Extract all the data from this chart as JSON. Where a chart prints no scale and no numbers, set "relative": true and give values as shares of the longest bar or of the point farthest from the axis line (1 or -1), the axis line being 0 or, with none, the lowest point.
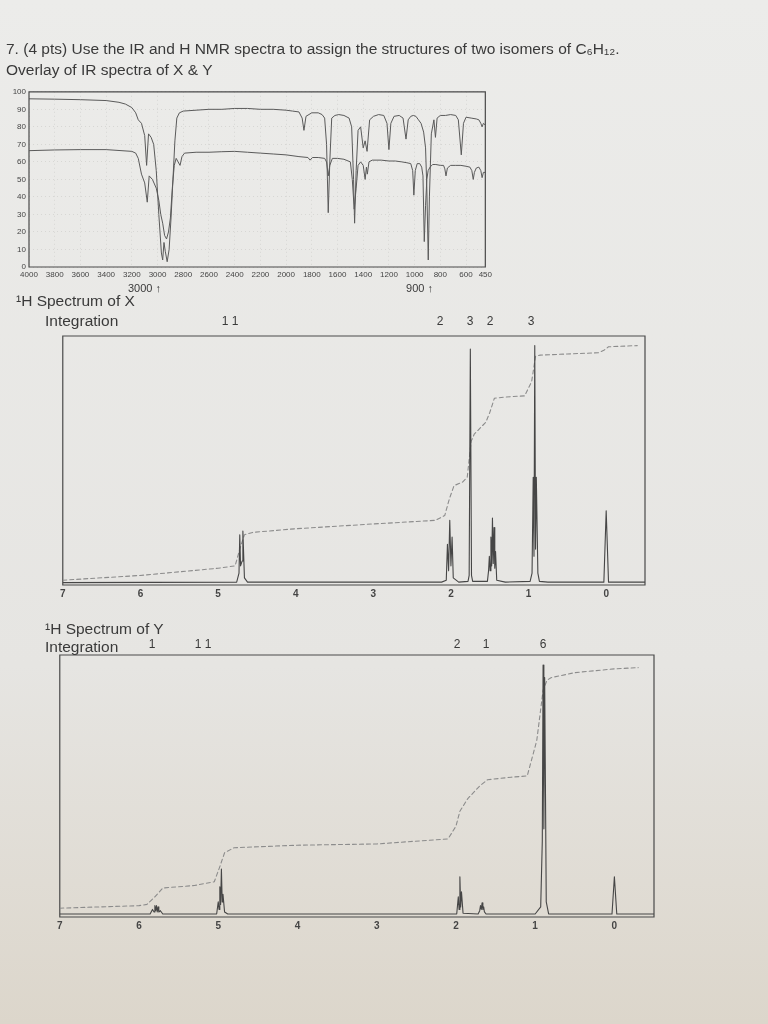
{
  "chart_data": [
    {
      "type": "line",
      "title": "7. (4 pts) Use the IR and H NMR spectra to assign the structures of two isomers of C₆H₁₂.",
      "subtitle": "Overlay of IR spectra of X & Y",
      "xlim": [
        4000,
        450
      ],
      "xticks": [
        4000,
        3800,
        3600,
        3400,
        3200,
        3000,
        2800,
        2600,
        2400,
        2200,
        2000,
        1800,
        1600,
        1400,
        1200,
        1000,
        800,
        600,
        450
      ],
      "ylim": [
        0,
        100
      ],
      "yticks": [
        0,
        10,
        20,
        30,
        40,
        50,
        60,
        70,
        80,
        90,
        100
      ],
      "grid": true,
      "marker": "none",
      "annotations": [
        "3000 ↑",
        "900 ↑"
      ],
      "series": [
        {
          "color": "#5a5a5a",
          "x": [
            4000,
            3800,
            3600,
            3400,
            3300,
            3250,
            3200,
            3170,
            3150,
            3125,
            3100,
            3085,
            3070,
            3050,
            3030,
            3010,
            2990,
            2970,
            2960,
            2950,
            2940,
            2925,
            2910,
            2895,
            2880,
            2865,
            2850,
            2830,
            2800,
            2700,
            2600,
            2500,
            2400,
            2300,
            2200,
            2100,
            2000,
            1950,
            1900,
            1875,
            1861,
            1845,
            1800,
            1750,
            1720,
            1700,
            1685,
            1672,
            1660,
            1645,
            1620,
            1590,
            1550,
            1510,
            1490,
            1475,
            1467,
            1455,
            1440,
            1420,
            1400,
            1385,
            1370,
            1350,
            1320,
            1280,
            1240,
            1215,
            1200,
            1185,
            1160,
            1120,
            1090,
            1067,
            1050,
            1030,
            1010,
            990,
            970,
            950,
            930,
            915,
            905,
            894,
            885,
            870,
            850,
            838,
            825,
            800,
            760,
            720,
            680,
            660,
            637,
            620,
            600,
            560,
            520,
            500,
            485,
            475,
            465,
            450
          ],
          "values": [
            96,
            95.8,
            95.5,
            95,
            94,
            93,
            91,
            88,
            84,
            82,
            75,
            58,
            76,
            74,
            70,
            55,
            30,
            8,
            4,
            14,
            9,
            3,
            10,
            28,
            50,
            72,
            85,
            88,
            89,
            89.5,
            90,
            90,
            90.5,
            90.5,
            90,
            90,
            89.5,
            89,
            88.5,
            85,
            78,
            86,
            88,
            88,
            87,
            85,
            70,
            31,
            60,
            85,
            86.5,
            87,
            86.5,
            85,
            80,
            50,
            25,
            55,
            78,
            80,
            68,
            72,
            66,
            84,
            86,
            87,
            86.5,
            82,
            67,
            82,
            86,
            86.5,
            85,
            73,
            84,
            86,
            86.5,
            86,
            84,
            82,
            77,
            68,
            45,
            4,
            40,
            76,
            84,
            74,
            85,
            86.5,
            86.5,
            87,
            86.5,
            84,
            64,
            82,
            85.5,
            85,
            84.5,
            84,
            82,
            80,
            82,
            81
          ]
        },
        {
          "color": "#5a5a5a",
          "x": [
            4000,
            3800,
            3600,
            3400,
            3200,
            3170,
            3150,
            3125,
            3100,
            3080,
            3065,
            3040,
            3010,
            2990,
            2975,
            2960,
            2945,
            2930,
            2915,
            2900,
            2885,
            2870,
            2855,
            2840,
            2825,
            2810,
            2790,
            2700,
            2600,
            2500,
            2400,
            2300,
            2200,
            2100,
            2000,
            1900,
            1830,
            1813,
            1795,
            1750,
            1700,
            1685,
            1672,
            1660,
            1640,
            1600,
            1550,
            1500,
            1485,
            1470,
            1455,
            1440,
            1420,
            1400,
            1385,
            1375,
            1368,
            1355,
            1330,
            1300,
            1260,
            1200,
            1150,
            1100,
            1060,
            1030,
            1015,
            1006,
            995,
            980,
            960,
            945,
            935,
            925,
            915,
            905,
            895,
            880,
            860,
            835,
            800,
            775,
            765,
            756,
            745,
            720,
            680,
            640,
            600,
            570,
            555,
            544,
            535,
            520,
            500,
            485,
            475,
            465,
            450
          ],
          "values": [
            66.4,
            66.8,
            67,
            67,
            66,
            65,
            62,
            53,
            48,
            37,
            52,
            50,
            45,
            38,
            30,
            25,
            18,
            16,
            20,
            28,
            45,
            58,
            62,
            60,
            58,
            63,
            65,
            65.5,
            65.5,
            65.8,
            66,
            65.5,
            65,
            64.5,
            64,
            63,
            62.5,
            61,
            62.5,
            62.5,
            62,
            60,
            52,
            58,
            62,
            62,
            61.5,
            60,
            50,
            33,
            45,
            58,
            60,
            58,
            50,
            57,
            53,
            60,
            61,
            61,
            61,
            60.5,
            60.5,
            60,
            59.5,
            59,
            55,
            41,
            55,
            59,
            59,
            57,
            52,
            14.5,
            35,
            50,
            55,
            57,
            58.5,
            58.5,
            58,
            58,
            56,
            52,
            56.5,
            58,
            58,
            58,
            57.5,
            57,
            55,
            50,
            54,
            56.5,
            57,
            55,
            51,
            54,
            54
          ]
        }
      ]
    },
    {
      "type": "line",
      "title": "¹H Spectrum of X",
      "relative": true,
      "xlim": [
        7,
        -0.5
      ],
      "xticks": [
        7,
        6,
        5,
        4,
        3,
        2,
        1,
        0
      ],
      "marker": "none",
      "annotations": [
        "Integration",
        "1 1",
        "2",
        "3",
        "2",
        "3"
      ],
      "series": [
        {
          "color": "#464646",
          "x": [
            7.0,
            4.76,
            4.73,
            4.72,
            4.71,
            4.69,
            4.68,
            4.66,
            4.62,
            2.12,
            2.06,
            2.045,
            2.03,
            2.015,
            2.0,
            1.985,
            1.97,
            1.9,
            1.78,
            1.765,
            1.75,
            1.735,
            1.72,
            1.53,
            1.515,
            1.505,
            1.495,
            1.485,
            1.475,
            1.465,
            1.455,
            1.445,
            1.435,
            1.425,
            1.41,
            1.3,
            0.98,
            0.955,
            0.94,
            0.93,
            0.92,
            0.91,
            0.9,
            0.88,
            0.86,
            0.75,
            0.03,
            0.0,
            -0.03,
            -0.5
          ],
          "values": [
            0.01,
            0.012,
            0.05,
            0.21,
            0.08,
            0.1,
            0.225,
            0.03,
            0.012,
            0.012,
            0.02,
            0.17,
            0.06,
            0.27,
            0.08,
            0.2,
            0.03,
            0.012,
            0.015,
            0.04,
            0.985,
            0.04,
            0.015,
            0.015,
            0.06,
            0.12,
            0.06,
            0.2,
            0.08,
            0.28,
            0.09,
            0.24,
            0.07,
            0.14,
            0.02,
            0.012,
            0.015,
            0.05,
            0.45,
            0.12,
            1.0,
            0.15,
            0.45,
            0.05,
            0.015,
            0.012,
            0.012,
            0.31,
            0.012,
            0.012
          ]
        },
        {
          "color": "#8c8c8c",
          "line_style": "dashed",
          "x": [
            7.0,
            6.0,
            5.0,
            4.78,
            4.72,
            4.66,
            4.55,
            4.0,
            3.0,
            2.2,
            2.08,
            2.02,
            1.96,
            1.85,
            1.79,
            1.74,
            1.7,
            1.55,
            1.5,
            1.44,
            1.3,
            1.05,
            0.96,
            0.91,
            0.85,
            0.5,
            0.1,
            0.03,
            -0.03,
            -0.4
          ],
          "values": [
            0.02,
            0.04,
            0.07,
            0.08,
            0.15,
            0.21,
            0.22,
            0.235,
            0.255,
            0.27,
            0.29,
            0.36,
            0.415,
            0.43,
            0.45,
            0.6,
            0.63,
            0.68,
            0.72,
            0.78,
            0.785,
            0.79,
            0.85,
            0.955,
            0.96,
            0.965,
            0.97,
            0.98,
            0.995,
            1.0
          ]
        }
      ]
    },
    {
      "type": "line",
      "title": "¹H Spectrum of Y",
      "relative": true,
      "xlim": [
        7,
        -0.5
      ],
      "xticks": [
        7,
        6,
        5,
        4,
        3,
        2,
        1,
        0
      ],
      "marker": "none",
      "annotations": [
        "Integration",
        "1",
        "1 1",
        "2",
        "1",
        "6"
      ],
      "series": [
        {
          "color": "#464646",
          "x": [
            7.0,
            5.86,
            5.83,
            5.81,
            5.8,
            5.79,
            5.78,
            5.77,
            5.76,
            5.75,
            5.73,
            5.7,
            5.02,
            5.0,
            4.99,
            4.98,
            4.97,
            4.96,
            4.95,
            4.94,
            4.92,
            4.88,
            1.99,
            1.97,
            1.96,
            1.95,
            1.94,
            1.93,
            1.91,
            1.72,
            1.7,
            1.69,
            1.68,
            1.67,
            1.66,
            1.65,
            1.64,
            1.62,
            1.0,
            0.93,
            0.91,
            0.9,
            0.89,
            0.88,
            0.86,
            0.83,
            0.03,
            0.0,
            -0.03,
            -0.5
          ],
          "values": [
            0.012,
            0.012,
            0.03,
            0.02,
            0.045,
            0.025,
            0.045,
            0.02,
            0.04,
            0.02,
            0.025,
            0.012,
            0.012,
            0.06,
            0.03,
            0.12,
            0.05,
            0.19,
            0.06,
            0.09,
            0.02,
            0.012,
            0.012,
            0.08,
            0.03,
            0.16,
            0.04,
            0.1,
            0.015,
            0.012,
            0.025,
            0.045,
            0.03,
            0.056,
            0.03,
            0.04,
            0.02,
            0.012,
            0.012,
            0.04,
            0.3,
            1.0,
            0.35,
            0.95,
            0.06,
            0.012,
            0.012,
            0.16,
            0.012,
            0.012
          ]
        },
        {
          "color": "#8c8c8c",
          "line_style": "dashed",
          "x": [
            7.0,
            6.5,
            6.0,
            5.9,
            5.8,
            5.7,
            5.3,
            5.05,
            4.98,
            4.92,
            4.8,
            4.0,
            3.0,
            2.1,
            2.0,
            1.95,
            1.85,
            1.7,
            1.6,
            1.3,
            1.1,
            0.98,
            0.9,
            0.85,
            0.8,
            0.5,
            0.0,
            -0.3
          ],
          "values": [
            0.035,
            0.04,
            0.045,
            0.05,
            0.08,
            0.115,
            0.125,
            0.14,
            0.2,
            0.255,
            0.275,
            0.285,
            0.29,
            0.31,
            0.36,
            0.42,
            0.47,
            0.52,
            0.545,
            0.555,
            0.56,
            0.7,
            0.9,
            0.94,
            0.95,
            0.97,
            0.985,
            0.99
          ]
        }
      ]
    }
  ]
}
